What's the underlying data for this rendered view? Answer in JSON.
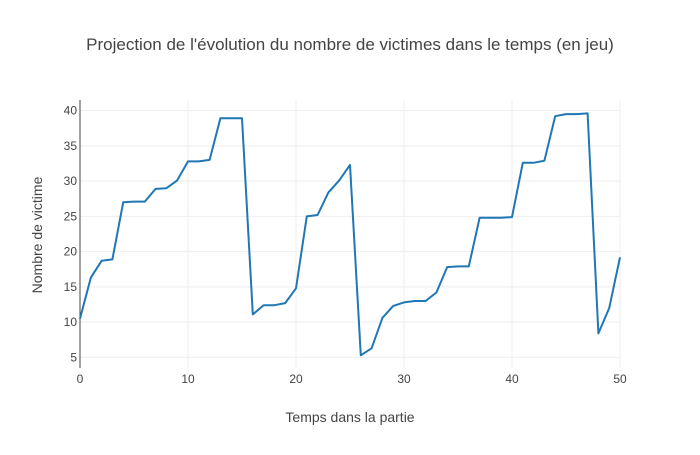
{
  "chart_data": {
    "type": "line",
    "title": "Projection de l'évolution du nombre de victimes dans le temps (en jeu)",
    "xlabel": "Temps dans la partie",
    "ylabel": "Nombre de victime",
    "xlim": [
      0,
      50
    ],
    "ylim": [
      3.5,
      41.5
    ],
    "xticks": [
      0,
      10,
      20,
      30,
      40,
      50
    ],
    "yticks": [
      5,
      10,
      15,
      20,
      25,
      30,
      35,
      40
    ],
    "grid": true,
    "legend": "none",
    "colors": {
      "line": "#1f77b4",
      "grid": "#eeeeee",
      "text": "#444444",
      "axis": "#444444"
    },
    "series": [
      {
        "x": [
          0,
          1,
          2,
          3,
          4,
          5,
          6,
          7,
          8,
          9,
          10,
          11,
          12,
          13,
          14,
          15,
          16,
          17,
          18,
          19,
          20,
          21,
          22,
          23,
          24,
          25,
          26,
          27,
          28,
          29,
          30,
          31,
          32,
          33,
          34,
          35,
          36,
          37,
          38,
          39,
          40,
          41,
          42,
          43,
          44,
          45,
          46,
          47,
          48,
          49,
          50
        ],
        "values": [
          10.5,
          16.3,
          18.7,
          18.9,
          27.0,
          27.1,
          27.1,
          28.9,
          29.0,
          30.1,
          32.8,
          32.8,
          33.0,
          38.9,
          38.9,
          38.9,
          11.1,
          12.4,
          12.4,
          12.7,
          14.8,
          25.0,
          25.2,
          28.4,
          30.1,
          32.3,
          5.3,
          6.3,
          10.6,
          12.3,
          12.8,
          13.0,
          13.0,
          14.2,
          17.8,
          17.9,
          17.9,
          24.8,
          24.8,
          24.8,
          24.9,
          32.6,
          32.6,
          32.9,
          39.2,
          39.5,
          39.5,
          39.6,
          8.4,
          12.0,
          19.2
        ]
      }
    ]
  }
}
